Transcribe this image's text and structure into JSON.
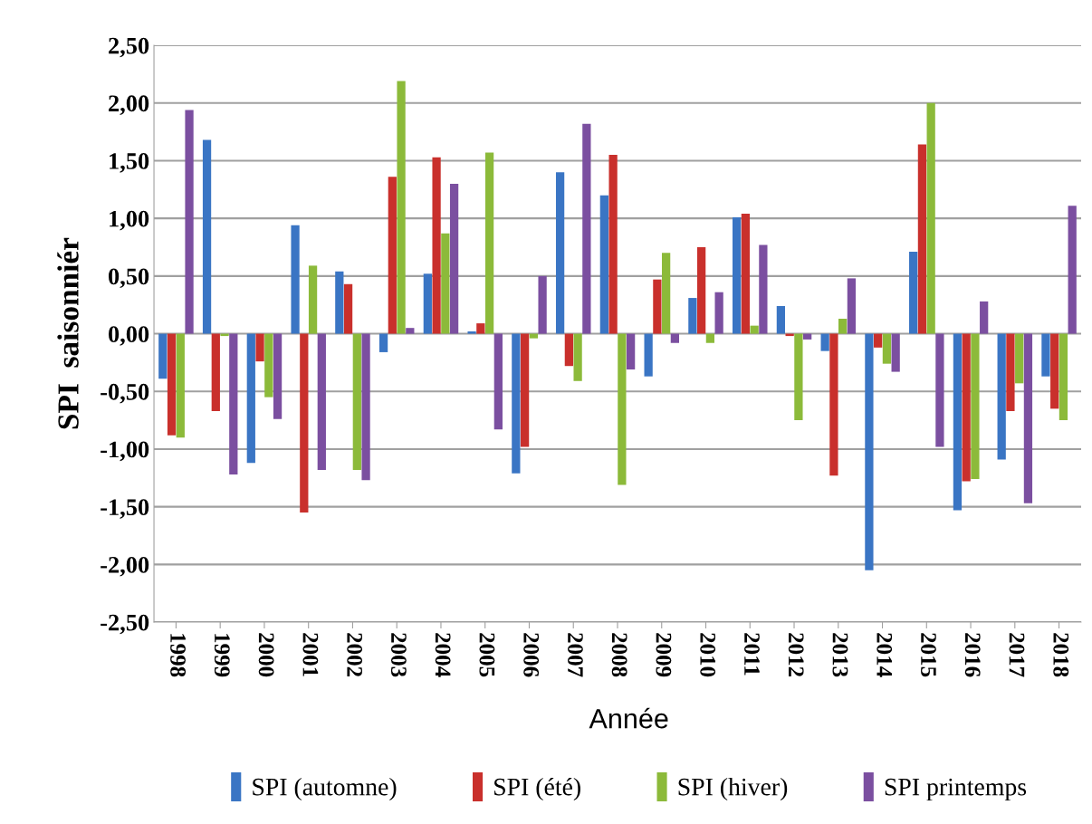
{
  "chart_data": {
    "type": "bar",
    "xlabel": "Année",
    "ylabel": "SPI  saisonniér",
    "categories": [
      "1998",
      "1999",
      "2000",
      "2001",
      "2002",
      "2003",
      "2004",
      "2005",
      "2006",
      "2007",
      "2008",
      "2009",
      "2010",
      "2011",
      "2012",
      "2013",
      "2014",
      "2015",
      "2016",
      "2017",
      "2018"
    ],
    "series": [
      {
        "name": "SPI (automne)",
        "color": "#3a75c4",
        "values": [
          -0.39,
          1.68,
          -1.12,
          0.94,
          0.54,
          -0.16,
          0.52,
          0.02,
          -1.21,
          1.4,
          1.2,
          -0.37,
          0.31,
          1.01,
          0.24,
          -0.15,
          -2.05,
          0.71,
          -1.53,
          -1.09,
          -0.37
        ]
      },
      {
        "name": "SPI (été)",
        "color": "#c9302c",
        "values": [
          -0.88,
          -0.67,
          -0.24,
          -1.55,
          0.43,
          1.36,
          1.53,
          0.09,
          -0.98,
          -0.28,
          1.55,
          0.47,
          0.75,
          1.04,
          -0.02,
          -1.23,
          -0.12,
          1.64,
          -1.28,
          -0.67,
          -0.65
        ]
      },
      {
        "name": "SPI (hiver)",
        "color": "#8cba3a",
        "values": [
          -0.9,
          -0.02,
          -0.55,
          0.59,
          -1.18,
          2.19,
          0.87,
          1.57,
          -0.04,
          -0.41,
          -1.31,
          0.7,
          -0.08,
          0.07,
          -0.75,
          0.13,
          -0.26,
          2.0,
          -1.26,
          -0.43,
          -0.75
        ]
      },
      {
        "name": "SPI printemps",
        "color": "#7b4fa0",
        "values": [
          1.94,
          -1.22,
          -0.74,
          -1.18,
          -1.27,
          0.05,
          1.3,
          -0.83,
          0.5,
          1.82,
          -0.31,
          -0.08,
          0.36,
          0.77,
          -0.05,
          0.48,
          -0.33,
          -0.98,
          0.28,
          -1.47,
          1.11
        ]
      }
    ],
    "ylim": [
      -2.5,
      2.5
    ],
    "yticks": [
      {
        "value": -2.5,
        "label": "-2,50"
      },
      {
        "value": -2.0,
        "label": "-2,00"
      },
      {
        "value": -1.5,
        "label": "-1,50"
      },
      {
        "value": -1.0,
        "label": "-1,00"
      },
      {
        "value": -0.5,
        "label": "-0,50"
      },
      {
        "value": 0,
        "label": "0,00"
      },
      {
        "value": 0.5,
        "label": "0,50"
      },
      {
        "value": 1.0,
        "label": "1,00"
      },
      {
        "value": 1.5,
        "label": "1,50"
      },
      {
        "value": 2.0,
        "label": "2,00"
      },
      {
        "value": 2.5,
        "label": "2,50"
      }
    ],
    "grid": "y",
    "legend": "bottom"
  }
}
